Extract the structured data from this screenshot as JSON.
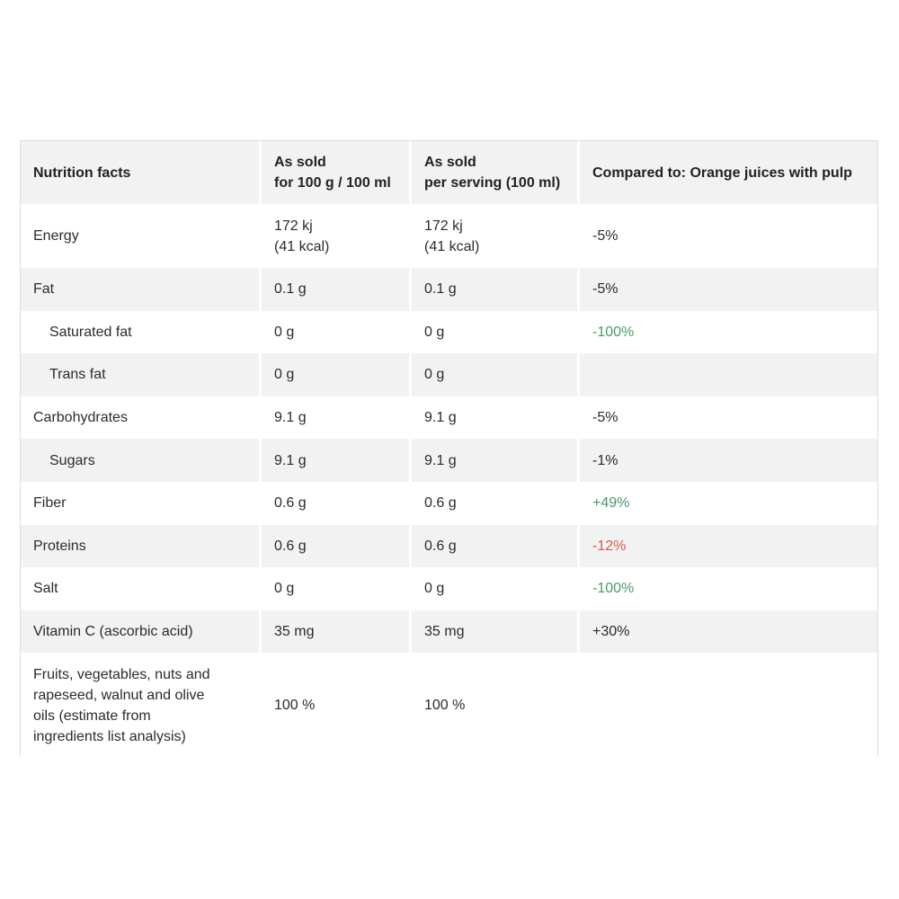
{
  "header": {
    "col1": "Nutrition facts",
    "col2_line1": "As sold",
    "col2_line2": "for 100 g / 100 ml",
    "col3_line1": "As sold",
    "col3_line2": "per serving (100 ml)",
    "col4": "Compared to: Orange juices with pulp"
  },
  "rows": [
    {
      "name": "Energy",
      "per100_line1": "172 kj",
      "per100_line2": "(41 kcal)",
      "serving_line1": "172 kj",
      "serving_line2": "(41 kcal)",
      "compare": "-5%",
      "compare_color": "#2b2b2b"
    },
    {
      "name": "Fat",
      "per100": "0.1 g",
      "serving": "0.1 g",
      "compare": "-5%",
      "compare_color": "#2b2b2b"
    },
    {
      "name": "Saturated fat",
      "per100": "0 g",
      "serving": "0 g",
      "compare": "-100%",
      "compare_color": "#4a9a6a"
    },
    {
      "name": "Trans fat",
      "per100": "0 g",
      "serving": "0 g",
      "compare": ""
    },
    {
      "name": "Carbohydrates",
      "per100": "9.1 g",
      "serving": "9.1 g",
      "compare": "-5%",
      "compare_color": "#2b2b2b"
    },
    {
      "name": "Sugars",
      "per100": "9.1 g",
      "serving": "9.1 g",
      "compare": "-1%",
      "compare_color": "#2b2b2b"
    },
    {
      "name": "Fiber",
      "per100": "0.6 g",
      "serving": "0.6 g",
      "compare": "+49%",
      "compare_color": "#4a9a6a"
    },
    {
      "name": "Proteins",
      "per100": "0.6 g",
      "serving": "0.6 g",
      "compare": "-12%",
      "compare_color": "#d65a4e"
    },
    {
      "name": "Salt",
      "per100": "0 g",
      "serving": "0 g",
      "compare": "-100%",
      "compare_color": "#4a9a6a"
    },
    {
      "name": "Vitamin C (ascorbic acid)",
      "per100": "35 mg",
      "serving": "35 mg",
      "compare": "+30%",
      "compare_color": "#2b2b2b"
    },
    {
      "name_line1": "Fruits, vegetables, nuts and",
      "name_line2": "rapeseed, walnut and olive",
      "name_line3": "oils (estimate from",
      "name_line4": "ingredients list analysis)",
      "per100": "100 %",
      "serving": "100 %",
      "compare": ""
    }
  ]
}
